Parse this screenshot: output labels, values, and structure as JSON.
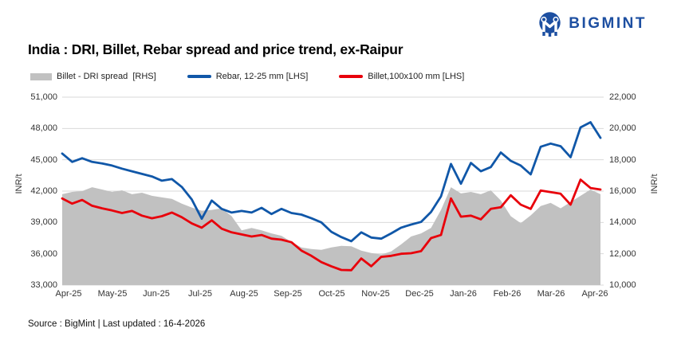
{
  "header": {
    "title": "India : DRI, Billet, Rebar spread and price trend, ex-Raipur",
    "brand": "BIGMINT"
  },
  "legend": [
    {
      "label": "Billet - DRI spread  [RHS]",
      "color": "#c1c1c1",
      "swatch": "area"
    },
    {
      "label": "Rebar, 12-25 mm [LHS]",
      "color": "#1057a8",
      "swatch": "line"
    },
    {
      "label": "Billet,100x100 mm [LHS]",
      "color": "#e8000b",
      "swatch": "line"
    }
  ],
  "footer": {
    "source": "Source : BigMint | Last updated : 16-4-2026"
  },
  "colors": {
    "brand_blue": "#1d4fa1",
    "grid": "#d9d9d9",
    "axis_text": "#333333",
    "rebar_blue": "#1057a8",
    "billet_red": "#e8000b",
    "spread_gray": "#c1c1c1"
  },
  "chart_data": {
    "type": "line",
    "title": "India : DRI, Billet, Rebar spread and price trend, ex-Raipur",
    "grid": "horizontal",
    "legend_position": "top",
    "x_tick_labels": [
      "Apr-25",
      "May-25",
      "Jun-25",
      "Jul-25",
      "Aug-25",
      "Sep-25",
      "Oct-25",
      "Nov-25",
      "Dec-25",
      "Jan-26",
      "Feb-26",
      "Mar-26",
      "Apr-26"
    ],
    "left_axis": {
      "label": "INR/t",
      "min": 33000,
      "max": 51000,
      "tick_labels": [
        "51,000",
        "48,000",
        "45,000",
        "42,000",
        "39,000",
        "36,000",
        "33,000"
      ]
    },
    "right_axis": {
      "label": "INR/t",
      "min": 10000,
      "max": 22000,
      "tick_labels": [
        "22,000",
        "20,000",
        "18,000",
        "16,000",
        "14,000",
        "12,000",
        "10,000"
      ]
    },
    "sampling": "weekly, Apr-2025 to 16-Apr-2026",
    "series": [
      {
        "name": "Billet - DRI spread [RHS]",
        "type": "area",
        "axis": "right",
        "color": "#c1c1c1",
        "values": [
          15800,
          15950,
          16000,
          16250,
          16100,
          15950,
          16050,
          15800,
          15900,
          15700,
          15600,
          15500,
          15200,
          14950,
          14750,
          14800,
          14900,
          14400,
          13500,
          13650,
          13500,
          13300,
          13150,
          12750,
          12400,
          12300,
          12250,
          12400,
          12500,
          12480,
          12200,
          12050,
          11950,
          12150,
          12600,
          13100,
          13300,
          13650,
          14800,
          16250,
          15850,
          15950,
          15800,
          16050,
          15400,
          14400,
          13950,
          14450,
          15050,
          15250,
          14900,
          15300,
          15700,
          16100,
          15800
        ]
      },
      {
        "name": "Rebar, 12-25 mm [LHS]",
        "type": "line",
        "axis": "left",
        "color": "#1057a8",
        "values": [
          45600,
          44800,
          45150,
          44800,
          44650,
          44450,
          44150,
          43900,
          43650,
          43400,
          43000,
          43150,
          42400,
          41200,
          39350,
          41100,
          40300,
          39950,
          40100,
          39950,
          40400,
          39800,
          40300,
          39900,
          39750,
          39400,
          39000,
          38100,
          37600,
          37200,
          38050,
          37550,
          37450,
          37950,
          38500,
          38800,
          39050,
          40000,
          41500,
          44600,
          42700,
          44700,
          43900,
          44300,
          45700,
          44900,
          44450,
          43600,
          46250,
          46550,
          46300,
          45250,
          48100,
          48600,
          47100
        ]
      },
      {
        "name": "Billet,100x100 mm [LHS]",
        "type": "line",
        "axis": "left",
        "color": "#e8000b",
        "values": [
          41300,
          40800,
          41150,
          40600,
          40350,
          40150,
          39900,
          40100,
          39650,
          39400,
          39600,
          39950,
          39500,
          38900,
          38500,
          39200,
          38400,
          38050,
          37850,
          37650,
          37800,
          37450,
          37350,
          37100,
          36300,
          35800,
          35200,
          34800,
          34450,
          34430,
          35550,
          34800,
          35700,
          35800,
          36000,
          36050,
          36250,
          37500,
          37800,
          41300,
          39550,
          39650,
          39300,
          40300,
          40450,
          41600,
          40700,
          40300,
          42050,
          41900,
          41750,
          40700,
          43100,
          42300,
          42150
        ]
      }
    ]
  }
}
